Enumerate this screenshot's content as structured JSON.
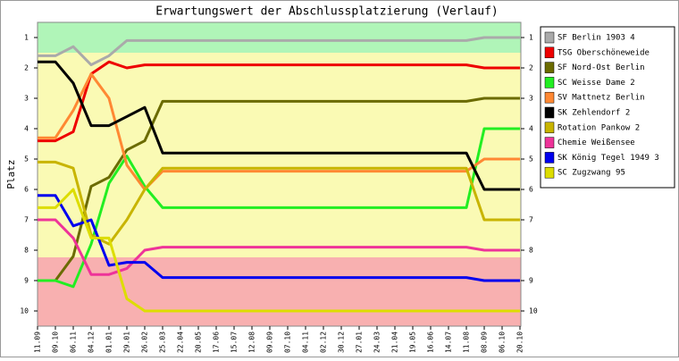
{
  "chart_data": {
    "type": "line",
    "title": "Erwartungswert der Abschlussplatzierung (Verlauf)",
    "y_label": "Platz",
    "categories": [
      "11.09",
      "09.10",
      "06.11",
      "04.12",
      "01.01",
      "29.01",
      "26.02",
      "25.03",
      "22.04",
      "20.05",
      "17.06",
      "15.07",
      "12.08",
      "09.09",
      "07.10",
      "04.11",
      "02.12",
      "30.12",
      "27.01",
      "24.03",
      "21.04",
      "19.05",
      "16.06",
      "14.07",
      "11.08",
      "08.09",
      "06.10",
      "20.10"
    ],
    "ylim": [
      0.5,
      10.5
    ],
    "y_inverted": true,
    "yticks": [
      1,
      2,
      3,
      4,
      5,
      6,
      7,
      8,
      9,
      10
    ],
    "series": [
      {
        "name": "SF Berlin 1903 4",
        "color": "#aaaaaa",
        "values": [
          1.6,
          1.6,
          1.3,
          1.9,
          1.6,
          1.1,
          1.1,
          1.1,
          1.1,
          1.1,
          1.1,
          1.1,
          1.1,
          1.1,
          1.1,
          1.1,
          1.1,
          1.1,
          1.1,
          1.1,
          1.1,
          1.1,
          1.1,
          1.1,
          1.1,
          1.0,
          1.0,
          1.0
        ]
      },
      {
        "name": "TSG Oberschöneweide",
        "color": "#ee0000",
        "values": [
          4.4,
          4.4,
          4.1,
          2.2,
          1.8,
          2.0,
          1.9,
          1.9,
          1.9,
          1.9,
          1.9,
          1.9,
          1.9,
          1.9,
          1.9,
          1.9,
          1.9,
          1.9,
          1.9,
          1.9,
          1.9,
          1.9,
          1.9,
          1.9,
          1.9,
          2.0,
          2.0,
          2.0
        ]
      },
      {
        "name": "SF Nord-Ost Berlin",
        "color": "#6b6b00",
        "values": [
          9.0,
          9.0,
          8.2,
          5.9,
          5.6,
          4.7,
          4.4,
          3.1,
          3.1,
          3.1,
          3.1,
          3.1,
          3.1,
          3.1,
          3.1,
          3.1,
          3.1,
          3.1,
          3.1,
          3.1,
          3.1,
          3.1,
          3.1,
          3.1,
          3.1,
          3.0,
          3.0,
          3.0
        ]
      },
      {
        "name": "SC Weisse Dame 2",
        "color": "#22ee22",
        "values": [
          9.0,
          9.0,
          9.2,
          7.8,
          5.8,
          4.9,
          5.9,
          6.6,
          6.6,
          6.6,
          6.6,
          6.6,
          6.6,
          6.6,
          6.6,
          6.6,
          6.6,
          6.6,
          6.6,
          6.6,
          6.6,
          6.6,
          6.6,
          6.6,
          6.6,
          4.0,
          4.0,
          4.0
        ]
      },
      {
        "name": "SV Mattnetz Berlin",
        "color": "#ff8833",
        "values": [
          4.3,
          4.3,
          3.4,
          2.2,
          3.0,
          5.2,
          6.0,
          5.4,
          5.4,
          5.4,
          5.4,
          5.4,
          5.4,
          5.4,
          5.4,
          5.4,
          5.4,
          5.4,
          5.4,
          5.4,
          5.4,
          5.4,
          5.4,
          5.4,
          5.4,
          5.0,
          5.0,
          5.0
        ]
      },
      {
        "name": "SK Zehlendorf 2",
        "color": "#000000",
        "values": [
          1.8,
          1.8,
          2.5,
          3.9,
          3.9,
          3.6,
          3.3,
          4.8,
          4.8,
          4.8,
          4.8,
          4.8,
          4.8,
          4.8,
          4.8,
          4.8,
          4.8,
          4.8,
          4.8,
          4.8,
          4.8,
          4.8,
          4.8,
          4.8,
          4.8,
          6.0,
          6.0,
          6.0
        ]
      },
      {
        "name": "Rotation Pankow 2",
        "color": "#c8b400",
        "values": [
          5.1,
          5.1,
          5.3,
          7.5,
          7.8,
          7.0,
          6.0,
          5.3,
          5.3,
          5.3,
          5.3,
          5.3,
          5.3,
          5.3,
          5.3,
          5.3,
          5.3,
          5.3,
          5.3,
          5.3,
          5.3,
          5.3,
          5.3,
          5.3,
          5.3,
          7.0,
          7.0,
          7.0
        ]
      },
      {
        "name": "Chemie Weißensee",
        "color": "#ee3399",
        "values": [
          7.0,
          7.0,
          7.6,
          8.8,
          8.8,
          8.6,
          8.0,
          7.9,
          7.9,
          7.9,
          7.9,
          7.9,
          7.9,
          7.9,
          7.9,
          7.9,
          7.9,
          7.9,
          7.9,
          7.9,
          7.9,
          7.9,
          7.9,
          7.9,
          7.9,
          8.0,
          8.0,
          8.0
        ]
      },
      {
        "name": "SK König Tegel 1949 3",
        "color": "#0000ee",
        "values": [
          6.2,
          6.2,
          7.2,
          7.0,
          8.5,
          8.4,
          8.4,
          8.9,
          8.9,
          8.9,
          8.9,
          8.9,
          8.9,
          8.9,
          8.9,
          8.9,
          8.9,
          8.9,
          8.9,
          8.9,
          8.9,
          8.9,
          8.9,
          8.9,
          8.9,
          9.0,
          9.0,
          9.0
        ]
      },
      {
        "name": "SC Zugzwang 95",
        "color": "#dddd00",
        "values": [
          6.6,
          6.6,
          6.0,
          7.6,
          7.6,
          9.6,
          10.0,
          10.0,
          10.0,
          10.0,
          10.0,
          10.0,
          10.0,
          10.0,
          10.0,
          10.0,
          10.0,
          10.0,
          10.0,
          10.0,
          10.0,
          10.0,
          10.0,
          10.0,
          10.0,
          10.0,
          10.0,
          10.0
        ]
      }
    ]
  }
}
